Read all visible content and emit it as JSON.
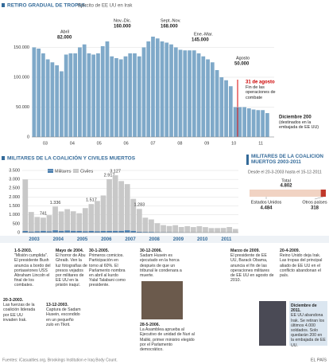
{
  "chart_data": [
    {
      "type": "bar",
      "title": "RETIRO GRADUAL DE TROPAS.",
      "subtitle": "Ejército de EE UU en Irak",
      "color": "#7fa9c9",
      "values": [
        150000,
        148000,
        140000,
        130000,
        125000,
        120000,
        110000,
        138000,
        140000,
        140000,
        150000,
        155000,
        140000,
        138000,
        140000,
        152000,
        160000,
        135000,
        132000,
        130000,
        135000,
        140000,
        140000,
        135000,
        150000,
        160000,
        168000,
        165000,
        160000,
        158000,
        155000,
        150000,
        146000,
        145000,
        145000,
        145000,
        140000,
        135000,
        130000,
        125000,
        112000,
        100000,
        95000,
        85000,
        50000,
        50000,
        50000,
        48000,
        46000,
        45000,
        45000,
        40000,
        200
      ],
      "ylim": [
        0,
        200000
      ],
      "yticks": [
        0,
        {
          "value": 50000,
          "label": "50.000"
        },
        {
          "value": 100000,
          "label": "100.000"
        },
        {
          "value": 150000,
          "label": "150.000"
        }
      ],
      "year_labels": [
        "03",
        "04",
        "05",
        "06",
        "07",
        "08",
        "09",
        "10",
        "11"
      ],
      "grid": true,
      "annotations": [
        {
          "label": "Abril",
          "value": "82.000"
        },
        {
          "label": "Nov.-Dic.",
          "value": "160.000"
        },
        {
          "label": "Sept.-Nov.",
          "value": "168.000"
        },
        {
          "label": "Ene.-Mar.",
          "value": "145.000"
        },
        {
          "label": "Agosto",
          "value": "50.000"
        },
        {
          "label": "31 de agosto",
          "value": "Fin de las operaciones de combate"
        },
        {
          "label": "Diciembre 200",
          "value": "(destinados en la embajada de EE UU)"
        }
      ]
    },
    {
      "type": "bar",
      "title": "MILITARES DE LA COALICIÓN Y CIVILES MUERTOS",
      "series": [
        {
          "name": "Militares",
          "color": "#4a7fb0",
          "values": [
            90,
            60,
            80,
            100,
            80,
            130,
            90,
            120,
            100,
            90,
            80,
            90,
            80,
            90,
            90,
            100,
            100,
            130,
            100,
            50,
            40,
            40,
            30,
            20,
            20,
            15,
            15,
            10,
            10,
            8,
            8,
            5,
            5,
            10,
            12,
            3
          ]
        },
        {
          "name": "Civiles",
          "color": "#c8c8c8",
          "values": [
            2900,
            1100,
            800,
            741,
            900,
            1336,
            1100,
            1200,
            1100,
            1000,
            1300,
            1517,
            1700,
            2000,
            2917,
            3127,
            2800,
            2600,
            1800,
            1283,
            800,
            700,
            500,
            400,
            350,
            400,
            300,
            350,
            300,
            350,
            300,
            250,
            250,
            250,
            300,
            200
          ]
        }
      ],
      "value_labels": [
        null,
        null,
        null,
        "741",
        null,
        "1.336",
        null,
        null,
        null,
        null,
        null,
        "1.517",
        null,
        null,
        "2.917",
        "3.127",
        null,
        null,
        null,
        "1.283",
        null,
        null,
        null,
        null,
        null,
        null,
        null,
        null,
        null,
        null,
        null,
        null,
        null,
        null,
        null,
        null
      ],
      "ylim": [
        0,
        3500
      ],
      "yticks": [
        0,
        500,
        {
          "value": 1000,
          "label": "1.000"
        },
        {
          "value": 1500,
          "label": "1.500"
        },
        {
          "value": 2000,
          "label": "2.000"
        },
        {
          "value": 2500,
          "label": "2.500"
        },
        {
          "value": 3000,
          "label": "3.000"
        },
        {
          "value": 3500,
          "label": "3.500"
        }
      ],
      "year_labels": [
        "2003",
        "2004",
        "2005",
        "2006",
        "2007",
        "2008",
        "2009",
        "2010",
        "2011"
      ],
      "grid": true
    }
  ],
  "panel": {
    "title": "MILITARES DE LA COALICIÓN MUERTOS 2003-2011",
    "subtitle": "Desde el 20-3-2003 hasta el 15-12-2011",
    "total_label": "Total",
    "total": "4.802",
    "us_label": "Estados Unidos",
    "us": "4.484",
    "other_label": "Otros países",
    "other": "318",
    "us_value": 4484,
    "other_value": 318
  },
  "events": [
    {
      "date": "1-5-2003.",
      "text": "\"Misión cumplida\". El presidente Bush anuncia a bordo del portaaviones USS Abraham Lincoln el final de los combates."
    },
    {
      "date": "20-3-2003.",
      "text": "Las fuerzas de la coalición liderada por EE UU invaden Irak."
    },
    {
      "date": "Mayo de 2004.",
      "text": "El horror de Abu Ghraib. Ven la luz fotografías de presos vejados por militares de EE UU en la prisión iraquí."
    },
    {
      "date": "13-12-2003.",
      "text": "Captura de Sadam Husein, escondido en un pequeño zulo en Tikrit."
    },
    {
      "date": "30-1-2005.",
      "text": "Primeros comicios. Participación en torno al 60%. El Parlamento nombra en abril al kurdo Yalal Talabani como presidente."
    },
    {
      "date": "30-12-2006.",
      "text": "Sadam Husein es ejecutado en la horca después de que un tribunal le condenara a muerte."
    },
    {
      "date": "28-5-2006.",
      "text": "La Asamblea aprueba al Ejecutivo de unidad de Nuri al Maliki, primer ministro elegido por el Parlamento democrático."
    },
    {
      "date": "Marzo de 2009.",
      "text": "El presidente de EE UU, Barack Obama, anuncia el fin de las operaciones militares de EE UU en agosto de 2010."
    },
    {
      "date": "20-4-2009.",
      "text": "Reino Unido deja Irak. Las tropas del principal aliado de EE UU en el conflicto abandonan el país."
    },
    {
      "date": "Diciembre de 2011.",
      "text": "EE UU abandona Irak. Se retiran los últimos 4.000 soldados. Solo quedarán 200 en la embajada de EE UU."
    }
  ],
  "footer": {
    "source": "Fuentes: iCasualties.org, Brookings Institution e Iraq Body Count.",
    "brand": "EL PAÍS"
  }
}
